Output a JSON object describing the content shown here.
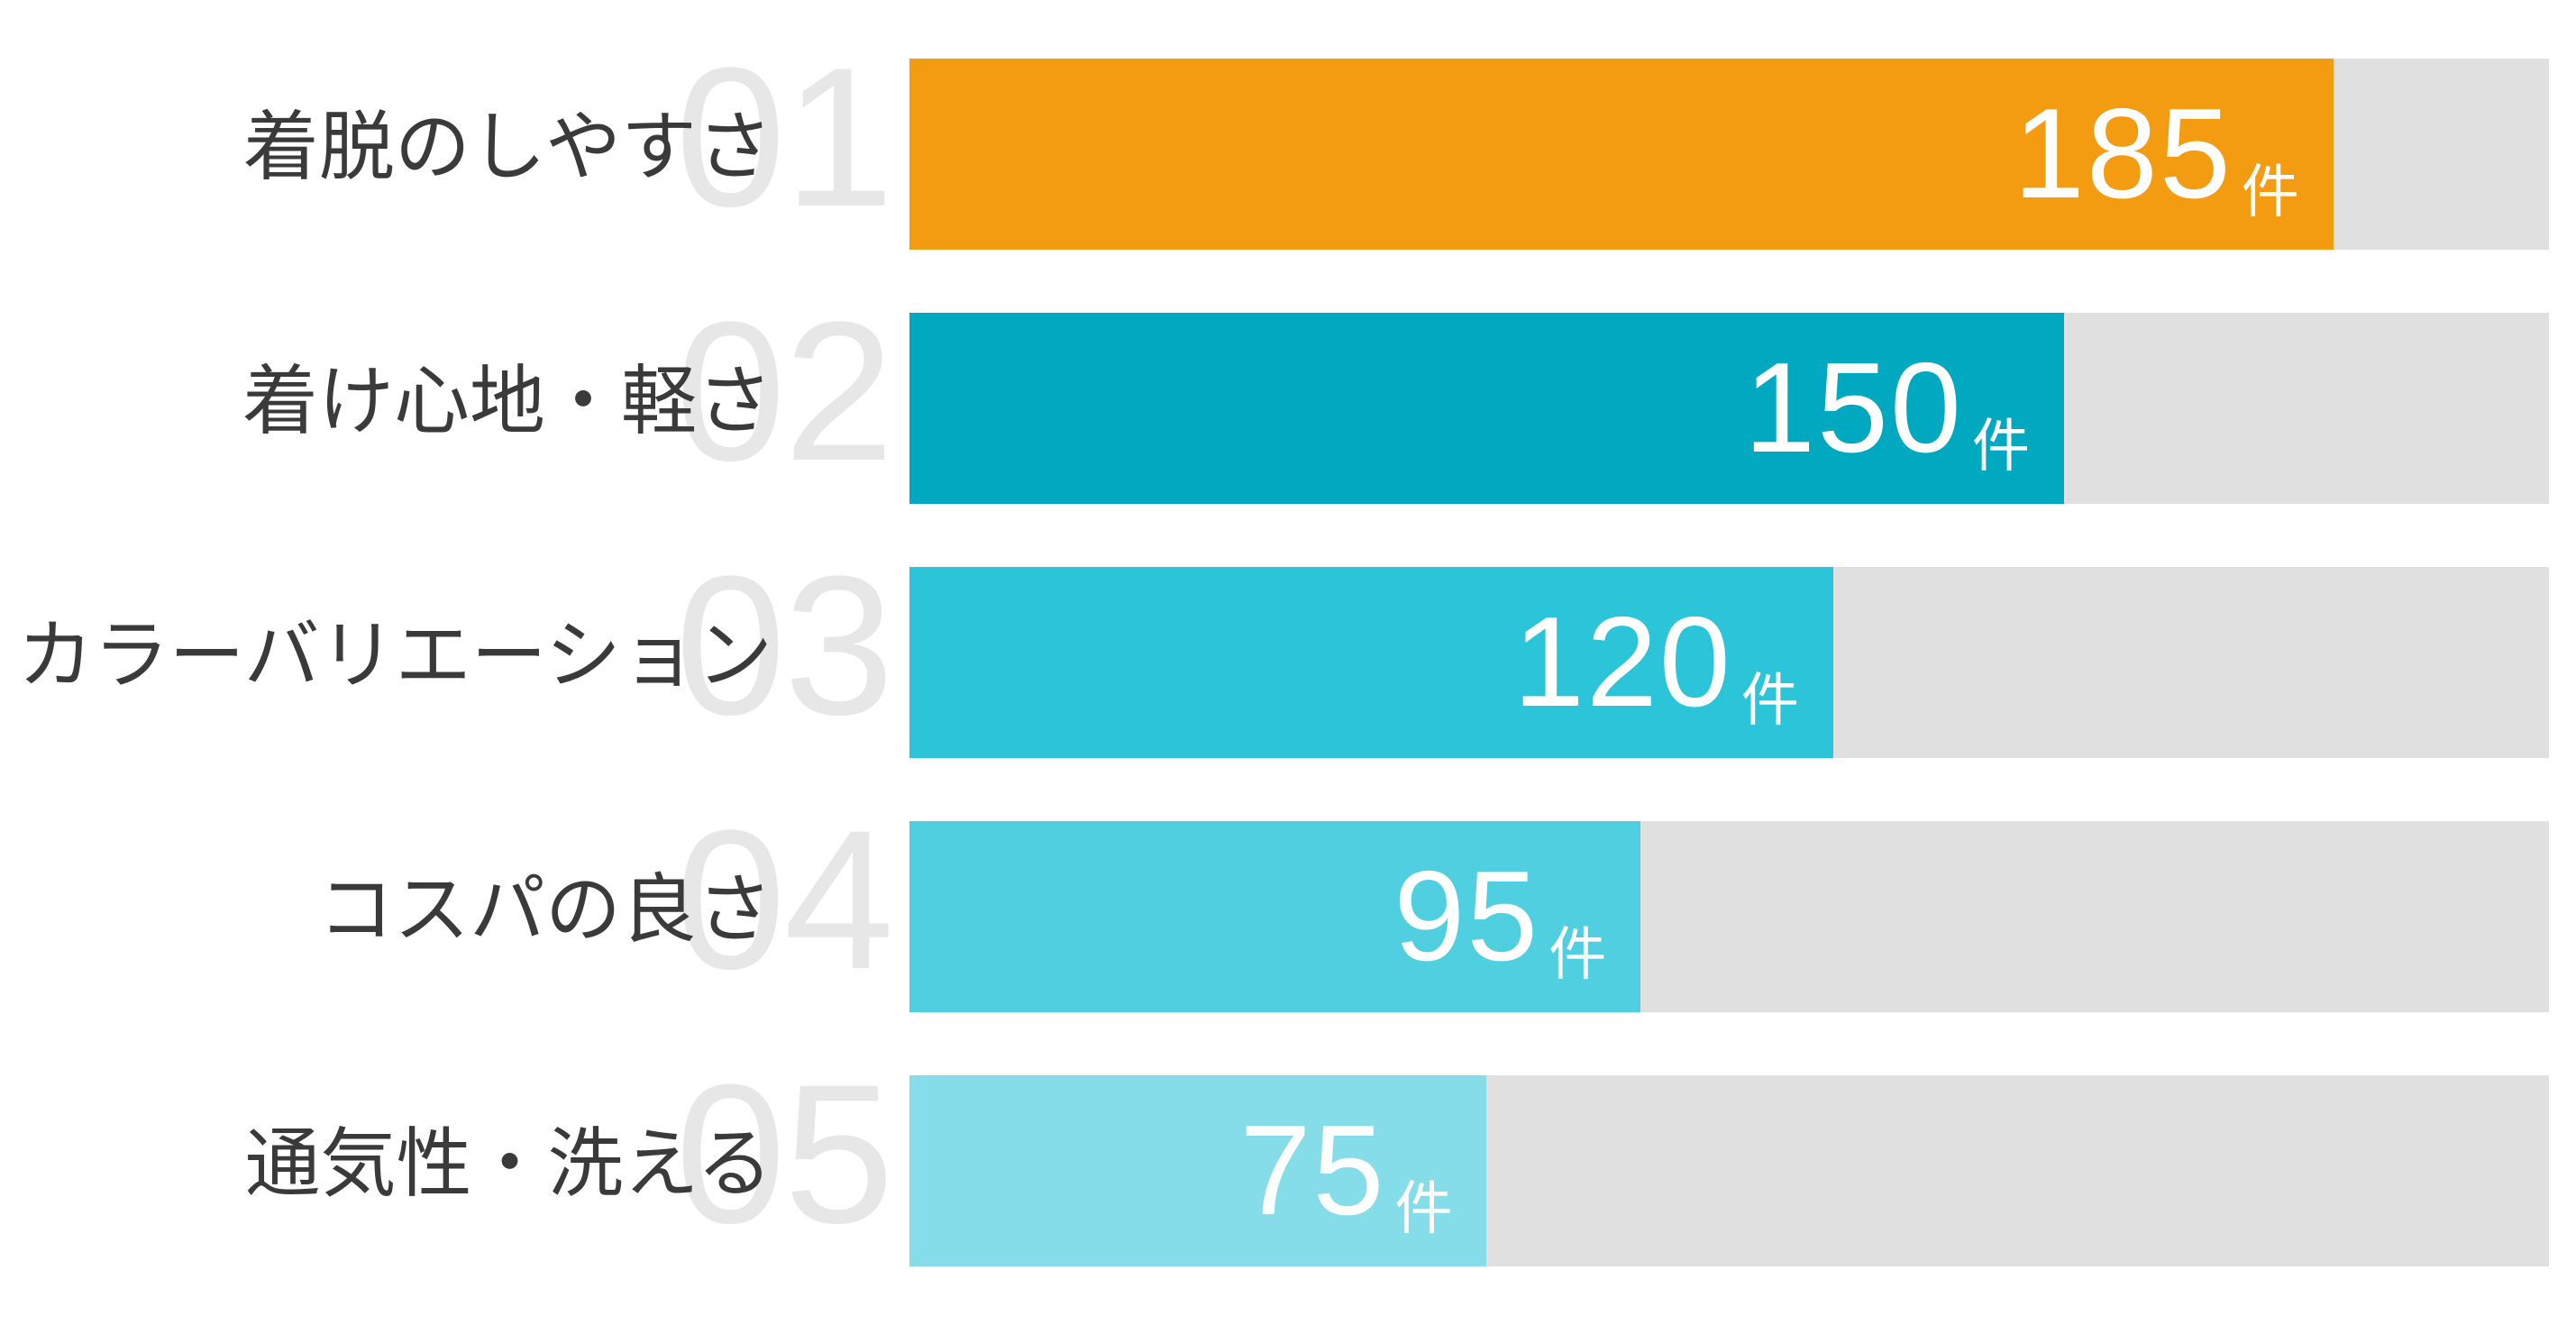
{
  "chart_data": {
    "type": "bar",
    "orientation": "horizontal",
    "title": "",
    "xlabel": "",
    "ylabel": "",
    "unit": "件",
    "categories": [
      "着脱のしやすさ",
      "着け心地・軽さ",
      "カラーバリエーション",
      "コスパの良さ",
      "通気性・洗える"
    ],
    "values": [
      185,
      150,
      120,
      95,
      75
    ],
    "ranks": [
      "01",
      "02",
      "03",
      "04",
      "05"
    ],
    "bar_colors": [
      "#F39C12",
      "#00A8C0",
      "#2BC4D8",
      "#4FCFE0",
      "#86DDEA"
    ],
    "track_color": "#E0E0E0",
    "rank_number_color": "#E7E7E7",
    "label_color": "#3A3A3A",
    "value_text_color": "#FFFFFF",
    "xlim": [
      0,
      213
    ],
    "grid": false,
    "legend": "none"
  }
}
